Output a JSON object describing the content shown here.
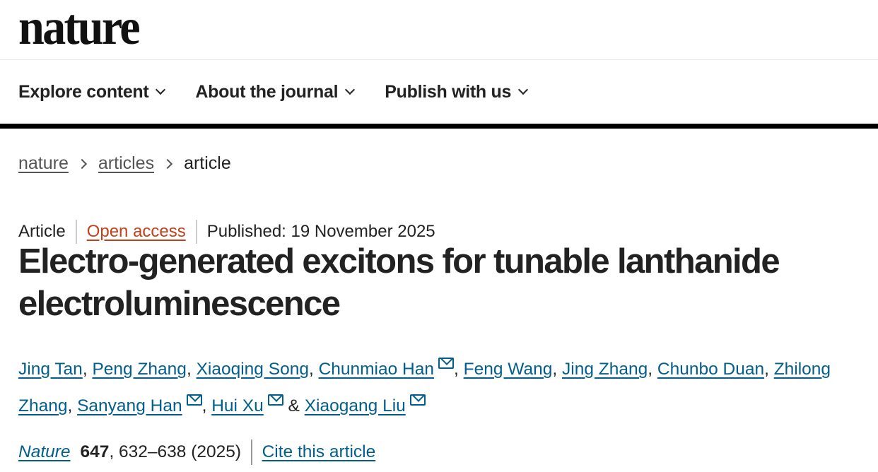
{
  "logo": "nature",
  "nav": [
    {
      "label": "Explore content"
    },
    {
      "label": "About the journal"
    },
    {
      "label": "Publish with us"
    }
  ],
  "breadcrumb": [
    {
      "label": "nature"
    },
    {
      "label": "articles"
    },
    {
      "label": "article"
    }
  ],
  "meta": {
    "type": "Article",
    "access": "Open access",
    "published": "Published: 19 November 2025"
  },
  "title": "Electro-generated excitons for tunable lanthanide electroluminescence",
  "authors": [
    {
      "name": "Jing Tan",
      "sep": ", ",
      "mail": false
    },
    {
      "name": "Peng Zhang",
      "sep": ", ",
      "mail": false
    },
    {
      "name": "Xiaoqing Song",
      "sep": ", ",
      "mail": false
    },
    {
      "name": "Chunmiao Han",
      "sep": ", ",
      "mail": true
    },
    {
      "name": "Feng Wang",
      "sep": ", ",
      "mail": false
    },
    {
      "name": "Jing Zhang",
      "sep": ", ",
      "mail": false
    },
    {
      "name": "Chunbo Duan",
      "sep": ", ",
      "mail": false
    },
    {
      "name": "Zhilong Zhang",
      "sep": ", ",
      "mail": false
    },
    {
      "name": "Sanyang Han",
      "sep": ", ",
      "mail": true
    },
    {
      "name": "Hui Xu",
      "sep": " & ",
      "mail": true
    },
    {
      "name": "Xiaogang Liu",
      "sep": "",
      "mail": true
    }
  ],
  "citation": {
    "journal": "Nature",
    "volume": "647",
    "pages": ", 632–638 (2025)",
    "cite_label": "Cite this article"
  },
  "colors": {
    "link": "#025e8d",
    "open_access": "#c4401b"
  }
}
